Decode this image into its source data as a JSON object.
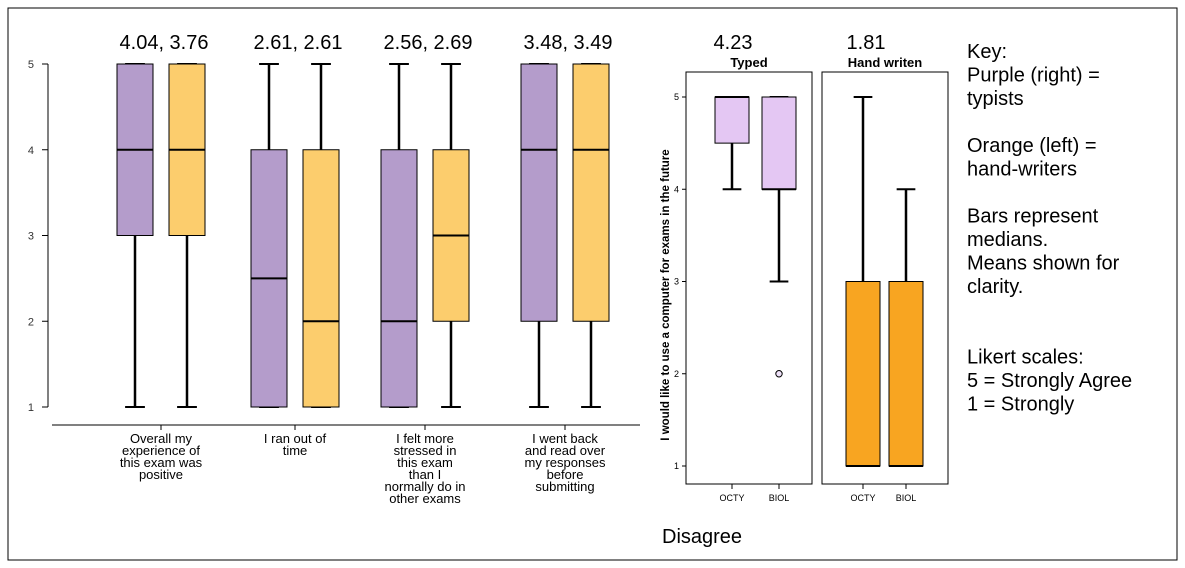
{
  "chart_data": [
    {
      "type": "boxplot",
      "y_ticks": [
        "1",
        "2",
        "3",
        "4",
        "5"
      ],
      "ylim": [
        1,
        5
      ],
      "colors": {
        "typists": "#b49ccb",
        "hand_writers": "#fccd6d"
      },
      "series_keys": [
        "typists",
        "hand_writers"
      ],
      "groups": [
        {
          "label_lines": [
            "Overall my",
            "experience of",
            "this exam was",
            "positive"
          ],
          "means_label": "4.04, 3.76",
          "boxes": {
            "typists": {
              "whisker_low": 1,
              "q1": 3,
              "median": 4,
              "q3": 5,
              "whisker_high": 5
            },
            "hand_writers": {
              "whisker_low": 1,
              "q1": 3,
              "median": 4,
              "q3": 5,
              "whisker_high": 5
            }
          }
        },
        {
          "label_lines": [
            "I ran out of",
            "time"
          ],
          "means_label": "2.61, 2.61",
          "boxes": {
            "typists": {
              "whisker_low": 1,
              "q1": 1,
              "median": 2.5,
              "q3": 4,
              "whisker_high": 5
            },
            "hand_writers": {
              "whisker_low": 1,
              "q1": 1,
              "median": 2,
              "q3": 4,
              "whisker_high": 5
            }
          }
        },
        {
          "label_lines": [
            "I felt more",
            "stressed in",
            "this exam",
            "than I",
            "normally do in",
            "other exams"
          ],
          "means_label": "2.56, 2.69",
          "boxes": {
            "typists": {
              "whisker_low": 1,
              "q1": 1,
              "median": 2,
              "q3": 4,
              "whisker_high": 5
            },
            "hand_writers": {
              "whisker_low": 1,
              "q1": 2,
              "median": 3,
              "q3": 4,
              "whisker_high": 5
            }
          }
        },
        {
          "label_lines": [
            "I went back",
            "and read over",
            "my responses",
            "before",
            "submitting"
          ],
          "means_label": "3.48, 3.49",
          "boxes": {
            "typists": {
              "whisker_low": 1,
              "q1": 2,
              "median": 4,
              "q3": 5,
              "whisker_high": 5
            },
            "hand_writers": {
              "whisker_low": 1,
              "q1": 2,
              "median": 4,
              "q3": 5,
              "whisker_high": 5
            }
          }
        }
      ]
    },
    {
      "type": "boxplot",
      "ylabel": "I would like to use a computer for exams in the future",
      "y_ticks": [
        "1",
        "2",
        "3",
        "4",
        "5"
      ],
      "ylim": [
        1,
        5
      ],
      "panels": [
        {
          "title": "Typed",
          "mean_label": "4.23",
          "color": "#e4c7f3",
          "boxes": [
            {
              "label": "OCTY",
              "whisker_low": 4,
              "q1": 4.5,
              "median": 5,
              "q3": 5,
              "whisker_high": 5,
              "outliers": []
            },
            {
              "label": "BIOL",
              "whisker_low": 3,
              "q1": 4,
              "median": 4,
              "q3": 5,
              "whisker_high": 5,
              "outliers": [
                2
              ]
            }
          ]
        },
        {
          "title": "Hand writen",
          "mean_label": "1.81",
          "color": "#f8a521",
          "boxes": [
            {
              "label": "OCTY",
              "whisker_low": 1,
              "q1": 1,
              "median": 1,
              "q3": 3,
              "whisker_high": 5,
              "outliers": []
            },
            {
              "label": "BIOL",
              "whisker_low": 1,
              "q1": 1,
              "median": 1,
              "q3": 3,
              "whisker_high": 4,
              "outliers": []
            }
          ]
        }
      ]
    }
  ],
  "key": {
    "lines": [
      "Key:",
      "Purple (right) =",
      "typists",
      "",
      "Orange (left) =",
      "hand-writers",
      "",
      "Bars represent",
      "medians.",
      "Means shown for",
      "clarity.",
      "",
      "",
      "Likert scales:",
      "5 = Strongly Agree",
      "1 = Strongly"
    ],
    "trailing": "Disagree"
  }
}
